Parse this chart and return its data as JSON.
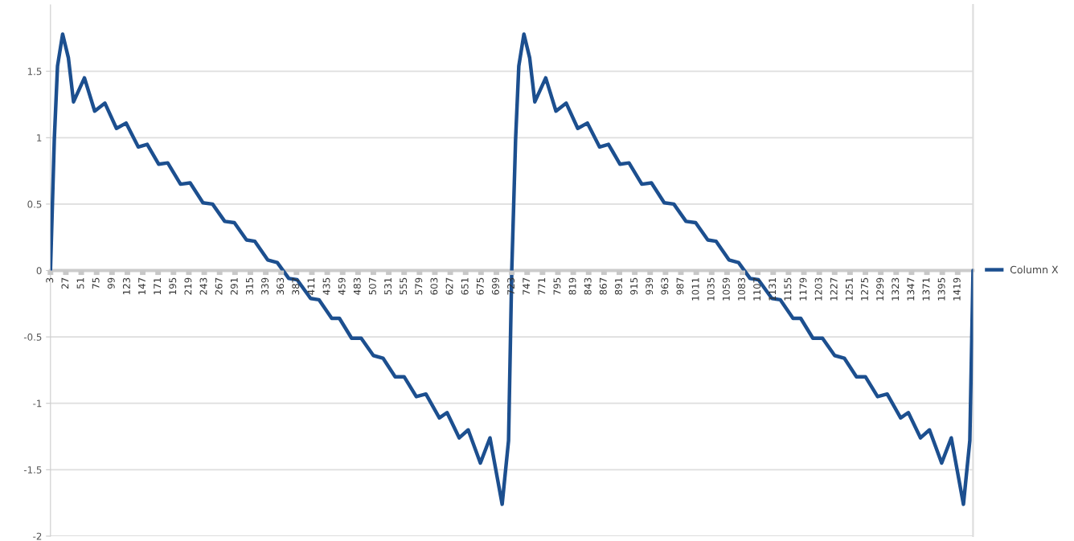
{
  "chart_data": {
    "type": "line",
    "legend": "right",
    "grid": "y",
    "marker": "none",
    "line_style": "solid",
    "xlim": [
      3,
      1443
    ],
    "ylim": [
      -2,
      2
    ],
    "yticks": [
      -2,
      -1.5,
      -1,
      -0.5,
      0,
      0.5,
      1,
      1.5
    ],
    "xticks": [
      3,
      27,
      51,
      75,
      99,
      123,
      147,
      171,
      195,
      219,
      243,
      267,
      291,
      315,
      339,
      363,
      387,
      411,
      435,
      459,
      483,
      507,
      531,
      555,
      579,
      603,
      627,
      651,
      675,
      699,
      723,
      747,
      771,
      795,
      819,
      843,
      867,
      891,
      915,
      939,
      963,
      987,
      1011,
      1035,
      1059,
      1083,
      1107,
      1131,
      1155,
      1179,
      1203,
      1227,
      1251,
      1275,
      1299,
      1323,
      1347,
      1371,
      1395,
      1419
    ],
    "x": [
      3,
      9,
      14,
      22,
      31,
      39,
      56,
      72,
      88,
      106,
      121,
      140,
      154,
      172,
      186,
      206,
      221,
      241,
      256,
      275,
      290,
      309,
      322,
      342,
      357,
      375,
      388,
      409,
      422,
      442,
      454,
      473,
      488,
      507,
      522,
      541,
      555,
      574,
      589,
      610,
      622,
      641,
      655,
      674,
      689,
      708,
      718,
      723,
      729,
      734,
      742,
      751,
      759,
      776,
      792,
      808,
      826,
      841,
      860,
      874,
      892,
      906,
      926,
      941,
      961,
      976,
      995,
      1010,
      1029,
      1042,
      1062,
      1077,
      1095,
      1108,
      1129,
      1142,
      1162,
      1174,
      1193,
      1208,
      1227,
      1242,
      1261,
      1275,
      1294,
      1309,
      1330,
      1342,
      1361,
      1375,
      1394,
      1409,
      1428,
      1438,
      1443
    ],
    "series": [
      {
        "name": "Column X",
        "color": "#1c4f8f",
        "values": [
          0,
          0.99,
          1.54,
          1.78,
          1.6,
          1.27,
          1.45,
          1.2,
          1.26,
          1.07,
          1.11,
          0.93,
          0.95,
          0.8,
          0.81,
          0.65,
          0.66,
          0.51,
          0.5,
          0.37,
          0.36,
          0.23,
          0.22,
          0.08,
          0.06,
          -0.06,
          -0.07,
          -0.21,
          -0.22,
          -0.36,
          -0.36,
          -0.51,
          -0.51,
          -0.64,
          -0.66,
          -0.8,
          -0.8,
          -0.95,
          -0.93,
          -1.11,
          -1.07,
          -1.26,
          -1.2,
          -1.45,
          -1.26,
          -1.76,
          -1.28,
          0,
          0.99,
          1.54,
          1.78,
          1.6,
          1.27,
          1.45,
          1.2,
          1.26,
          1.07,
          1.11,
          0.93,
          0.95,
          0.8,
          0.81,
          0.65,
          0.66,
          0.51,
          0.5,
          0.37,
          0.36,
          0.23,
          0.22,
          0.08,
          0.06,
          -0.06,
          -0.07,
          -0.21,
          -0.22,
          -0.36,
          -0.36,
          -0.51,
          -0.51,
          -0.64,
          -0.66,
          -0.8,
          -0.8,
          -0.95,
          -0.93,
          -1.11,
          -1.07,
          -1.26,
          -1.2,
          -1.45,
          -1.26,
          -1.76,
          -1.28,
          0
        ]
      }
    ]
  }
}
